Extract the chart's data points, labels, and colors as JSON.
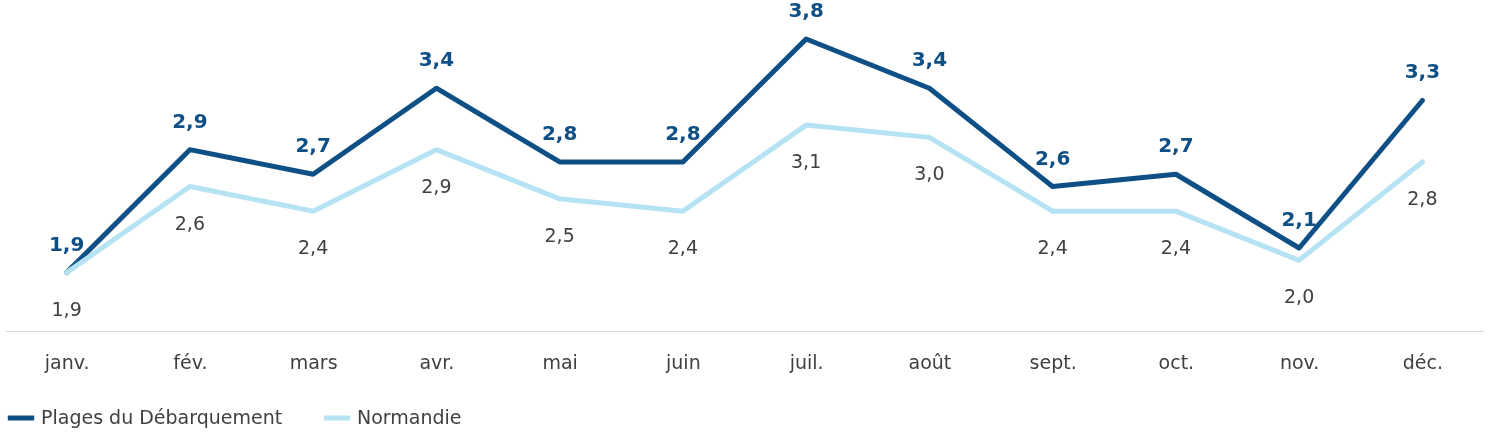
{
  "chart_data": {
    "type": "line",
    "categories": [
      "janv.",
      "fév.",
      "mars",
      "avr.",
      "mai",
      "juin",
      "juil.",
      "août",
      "sept.",
      "oct.",
      "nov.",
      "déc."
    ],
    "series": [
      {
        "name": "Plages du Débarquement",
        "color": "#0e4f86",
        "values": [
          1.9,
          2.9,
          2.7,
          3.4,
          2.8,
          2.8,
          3.8,
          3.4,
          2.6,
          2.7,
          2.1,
          3.3
        ],
        "value_labels": [
          "1,9",
          "2,9",
          "2,7",
          "3,4",
          "2,8",
          "2,8",
          "3,8",
          "3,4",
          "2,6",
          "2,7",
          "2,1",
          "3,3"
        ]
      },
      {
        "name": "Normandie",
        "color": "#b5e3f3",
        "values": [
          1.9,
          2.6,
          2.4,
          2.9,
          2.5,
          2.4,
          3.1,
          3.0,
          2.4,
          2.4,
          2.0,
          2.8
        ],
        "value_labels": [
          "1,9",
          "2,6",
          "2,4",
          "2,9",
          "2,5",
          "2,4",
          "3,1",
          "3,0",
          "2,4",
          "2,4",
          "2,0",
          "2,8"
        ]
      }
    ],
    "legend": "bottom",
    "line_style": "solid"
  }
}
